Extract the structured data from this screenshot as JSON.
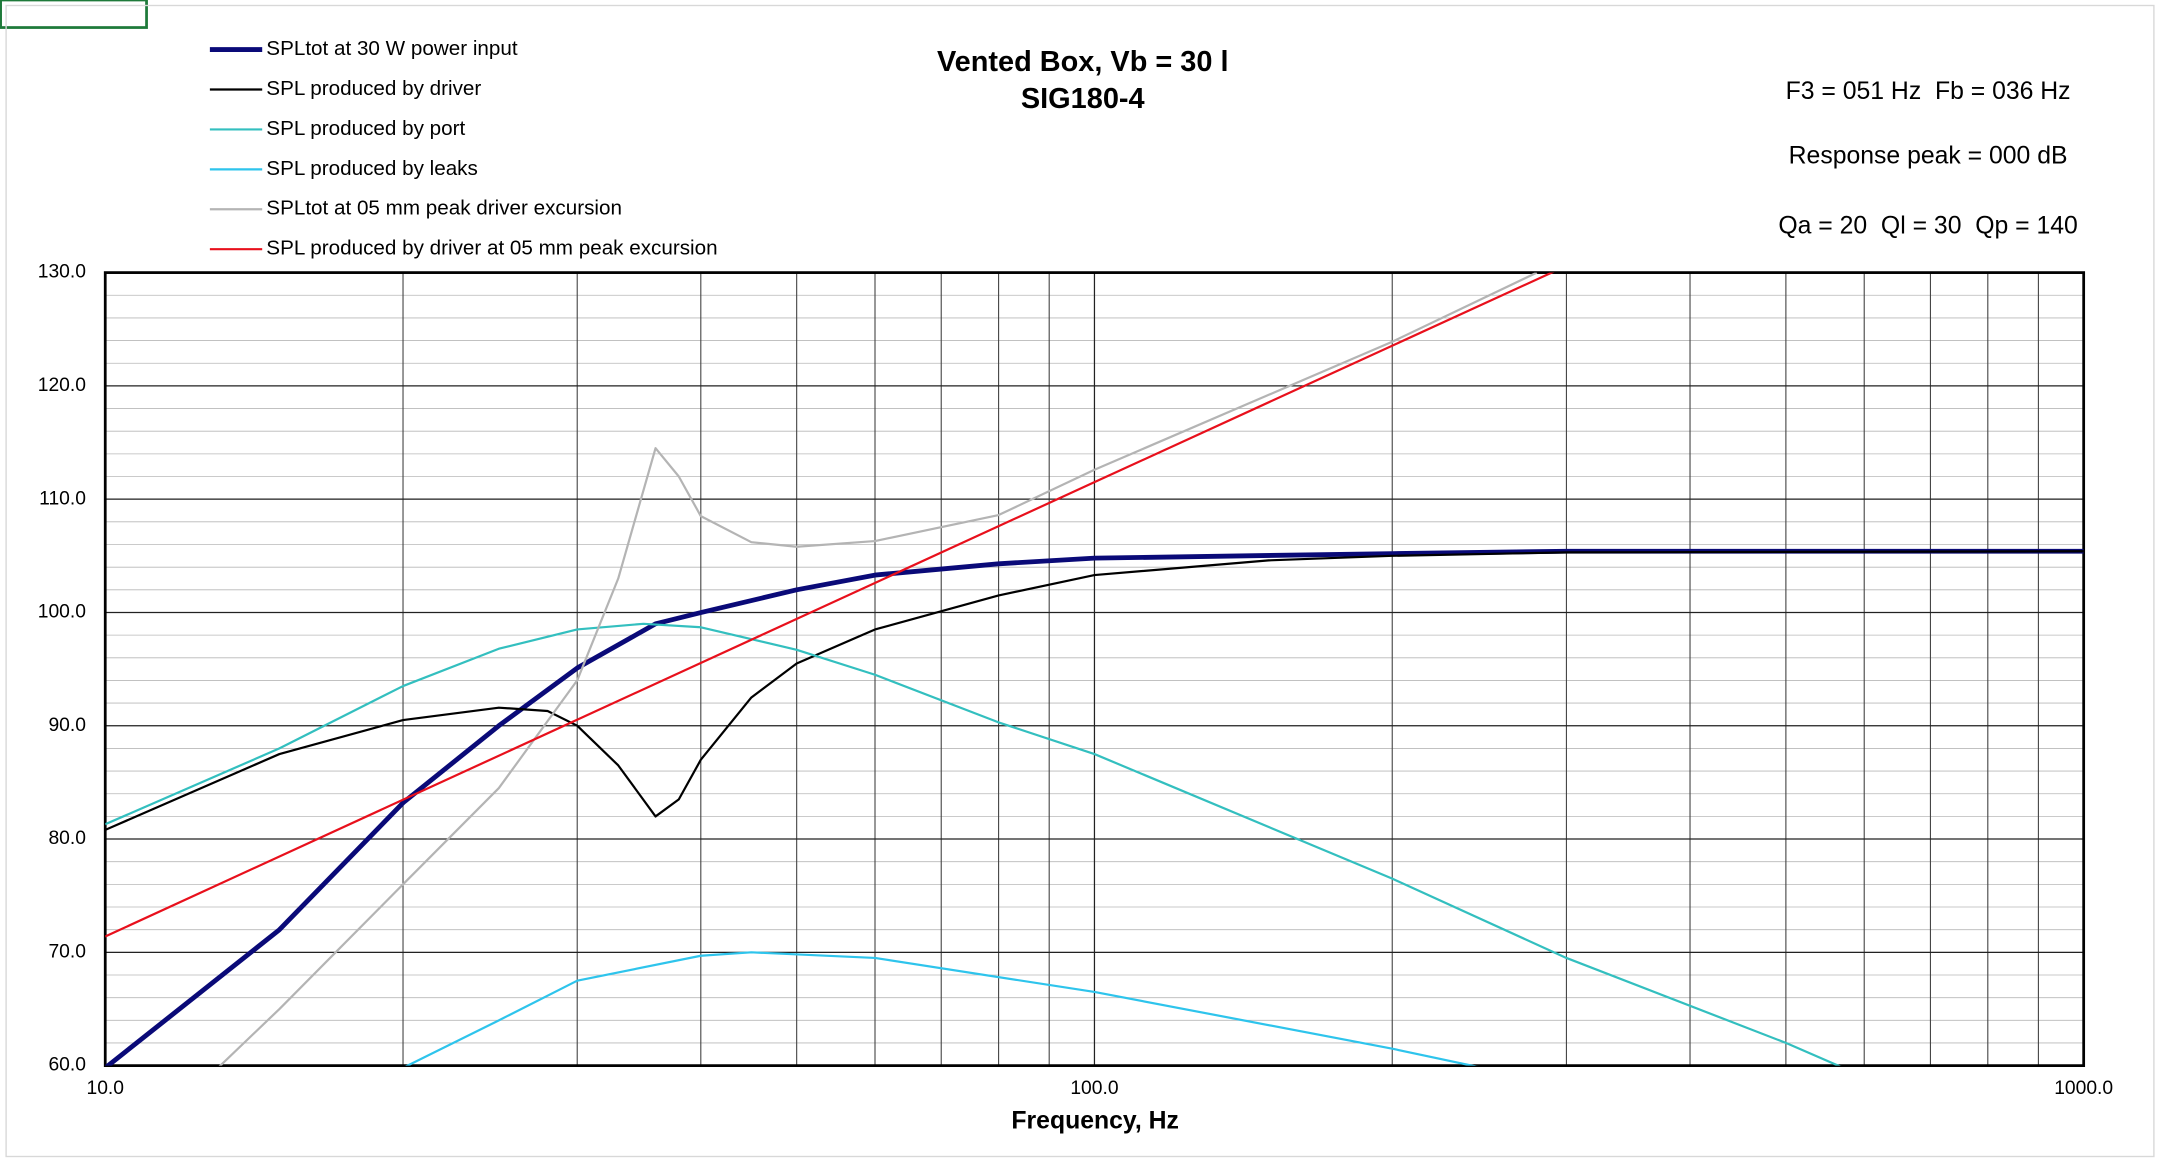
{
  "chart_data": {
    "type": "line",
    "title": "Vented Box, Vb = 30 l",
    "subtitle": "SIG180-4",
    "xlabel": "Frequency, Hz",
    "annotations": [
      "F3 = 051 Hz  Fb = 036 Hz",
      "Response peak = 000 dB",
      "Qa = 20  Ql = 30  Qp = 140"
    ],
    "xscale": "log",
    "grid": true,
    "legend": "top-left",
    "xlim": [
      10,
      1000
    ],
    "xticks": [
      {
        "value": 10,
        "label": "10.0"
      },
      {
        "value": 100,
        "label": "100.0"
      },
      {
        "value": 1000,
        "label": "1000.0"
      }
    ],
    "ylim": [
      60,
      130
    ],
    "yticks": [
      {
        "value": 60,
        "label": "60.0"
      },
      {
        "value": 70,
        "label": "70.0"
      },
      {
        "value": 80,
        "label": "80.0"
      },
      {
        "value": 90,
        "label": "90.0"
      },
      {
        "value": 100,
        "label": "100.0"
      },
      {
        "value": 110,
        "label": "110.0"
      },
      {
        "value": 120,
        "label": "120.0"
      },
      {
        "value": 130,
        "label": "130.0"
      }
    ],
    "series": [
      {
        "name": "SPLtot at 30 W power input",
        "color": "#0a0a78",
        "width": 3.5,
        "x": [
          10,
          15,
          20,
          25,
          30,
          36,
          40,
          50,
          60,
          80,
          100,
          200,
          300,
          1000
        ],
        "values": [
          59.8,
          72,
          83.2,
          90,
          95.1,
          99,
          100,
          102,
          103.3,
          104.3,
          104.8,
          105.2,
          105.4,
          105.4
        ]
      },
      {
        "name": "SPL produced by driver",
        "color": "#000000",
        "width": 1.6,
        "x": [
          10,
          15,
          20,
          25,
          28,
          30,
          33,
          36,
          38,
          40,
          45,
          50,
          60,
          80,
          100,
          150,
          200,
          300,
          1000
        ],
        "values": [
          80.8,
          87.5,
          90.5,
          91.6,
          91.3,
          90,
          86.5,
          82,
          83.5,
          87,
          92.5,
          95.5,
          98.5,
          101.5,
          103.3,
          104.6,
          105,
          105.3,
          105.4
        ]
      },
      {
        "name": "SPL produced by port",
        "color": "#33bfbf",
        "width": 1.6,
        "x": [
          10,
          15,
          20,
          25,
          30,
          35,
          40,
          50,
          60,
          80,
          100,
          200,
          300,
          500,
          600
        ],
        "values": [
          81.3,
          88,
          93.5,
          96.8,
          98.5,
          99,
          98.7,
          96.7,
          94.5,
          90.3,
          87.5,
          76.5,
          69.5,
          62,
          59
        ]
      },
      {
        "name": "SPL produced by leaks",
        "color": "#2ec4ec",
        "width": 1.6,
        "x": [
          20,
          25,
          30,
          40,
          45,
          60,
          100,
          200,
          250
        ],
        "values": [
          59.8,
          64,
          67.5,
          69.7,
          70,
          69.5,
          66.5,
          61.5,
          59.7
        ]
      },
      {
        "name": "SPLtot at 05 mm peak driver excursion",
        "color": "#b4b4b4",
        "width": 1.6,
        "x": [
          13,
          15,
          20,
          25,
          30,
          33,
          36,
          38,
          40,
          45,
          50,
          60,
          80,
          100,
          200,
          280
        ],
        "values": [
          59.8,
          65,
          76,
          84.5,
          94,
          103,
          114.5,
          112,
          108.5,
          106.2,
          105.8,
          106.3,
          108.6,
          112.6,
          123.9,
          130
        ]
      },
      {
        "name": "SPL produced by driver at 05 mm peak excursion",
        "color": "#e8101c",
        "width": 1.6,
        "x": [
          10,
          100,
          300
        ],
        "values": [
          71.4,
          111.5,
          130.6
        ]
      }
    ]
  }
}
